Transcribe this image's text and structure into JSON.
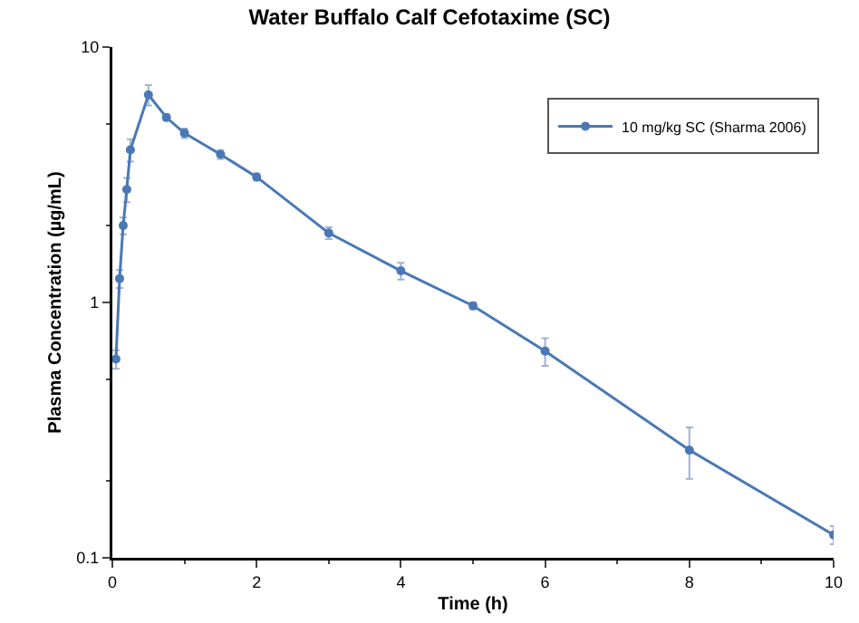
{
  "chart_data": {
    "type": "line",
    "title": "Water Buffalo Calf Cefotaxime (SC)",
    "xlabel": "Time (h)",
    "ylabel": "Plasma Concentration (µg/mL)",
    "x": [
      0.05,
      0.1,
      0.15,
      0.2,
      0.25,
      0.5,
      0.75,
      1,
      1.5,
      2,
      3,
      4,
      5,
      6,
      8,
      10
    ],
    "series": [
      {
        "name": "10 mg/kg SC (Sharma 2006)",
        "color": "#4a78b5",
        "values": [
          0.6,
          1.24,
          2.0,
          2.77,
          3.96,
          6.5,
          5.3,
          4.6,
          3.8,
          3.1,
          1.87,
          1.33,
          0.97,
          0.645,
          0.264,
          0.123
        ],
        "errors": [
          0.05,
          0.1,
          0.15,
          0.3,
          0.4,
          0.6,
          0.15,
          0.2,
          0.15,
          0.1,
          0.1,
          0.1,
          0.03,
          0.08,
          0.06,
          0.01
        ]
      }
    ],
    "xlim": [
      0,
      10
    ],
    "xticks": [
      0,
      2,
      4,
      6,
      8,
      10
    ],
    "ylim": [
      0.1,
      10
    ],
    "yticks": [
      0.1,
      1,
      10
    ],
    "log": true,
    "grid": false,
    "legend": "top right",
    "marker": "circle",
    "line_style": "solid"
  }
}
